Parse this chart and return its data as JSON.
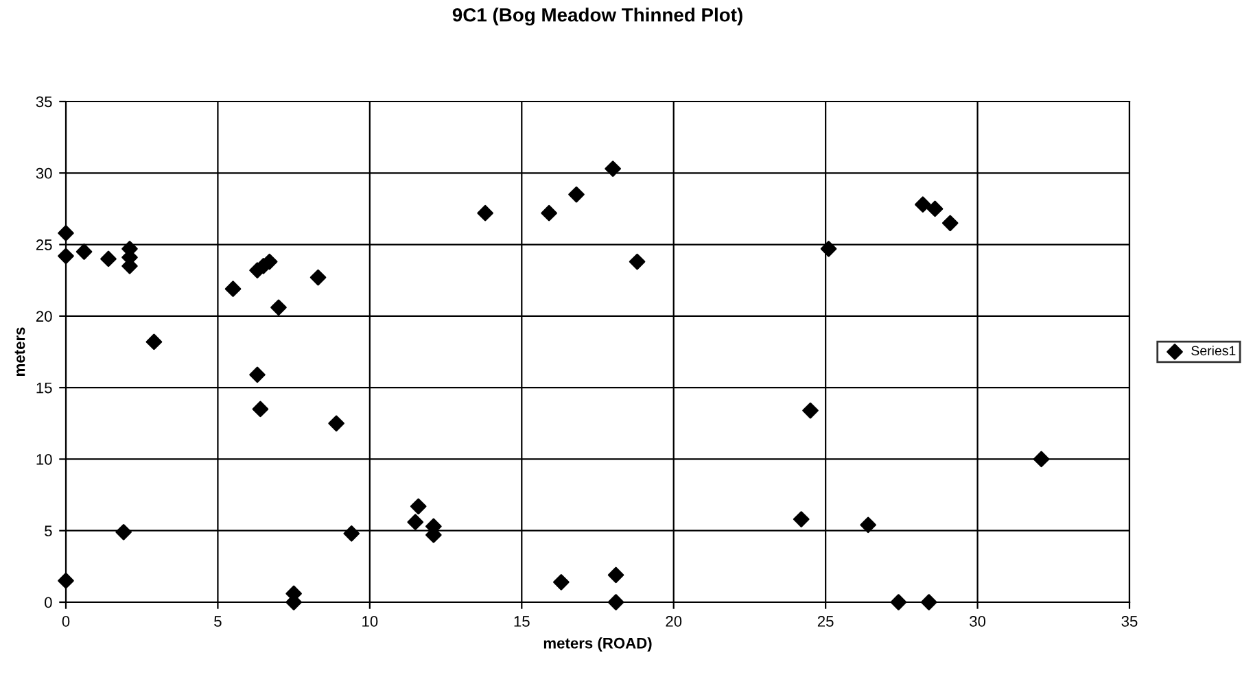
{
  "chart_data": {
    "type": "scatter",
    "title": "9C1 (Bog Meadow Thinned Plot)",
    "xlabel": "meters (ROAD)",
    "ylabel": "meters",
    "series": [
      {
        "name": "Series1",
        "color": "#000000",
        "x": [
          0,
          0,
          0,
          0.6,
          1.4,
          2.1,
          2.1,
          2.1,
          1.9,
          2.9,
          5.5,
          6.3,
          6.5,
          6.7,
          7.0,
          6.3,
          6.4,
          8.3,
          8.9,
          9.4,
          7.5,
          7.5,
          11.5,
          11.6,
          12.1,
          12.1,
          13.8,
          15.9,
          16.8,
          18.0,
          18.8,
          16.3,
          18.1,
          18.1,
          24.2,
          24.5,
          25.1,
          26.4,
          27.4,
          28.4,
          28.2,
          28.6,
          29.1,
          32.1
        ],
        "values": [
          25.8,
          24.2,
          1.5,
          24.5,
          24.0,
          24.7,
          24.1,
          23.5,
          4.9,
          18.2,
          21.9,
          23.2,
          23.5,
          23.8,
          20.6,
          15.9,
          13.5,
          22.7,
          12.5,
          4.8,
          0.6,
          0,
          5.6,
          6.7,
          5.3,
          4.7,
          27.2,
          27.2,
          28.5,
          30.3,
          23.8,
          1.4,
          1.9,
          0,
          5.8,
          13.4,
          24.7,
          5.4,
          0,
          0,
          27.8,
          27.5,
          26.5,
          10.0
        ]
      }
    ],
    "xlim": [
      0,
      35
    ],
    "xticks": [
      0,
      5,
      10,
      15,
      20,
      25,
      30,
      35
    ],
    "ylim": [
      0,
      35
    ],
    "yticks": [
      0,
      5,
      10,
      15,
      20,
      25,
      30,
      35
    ],
    "grid": true,
    "legend": "right",
    "marker": "diamond"
  }
}
